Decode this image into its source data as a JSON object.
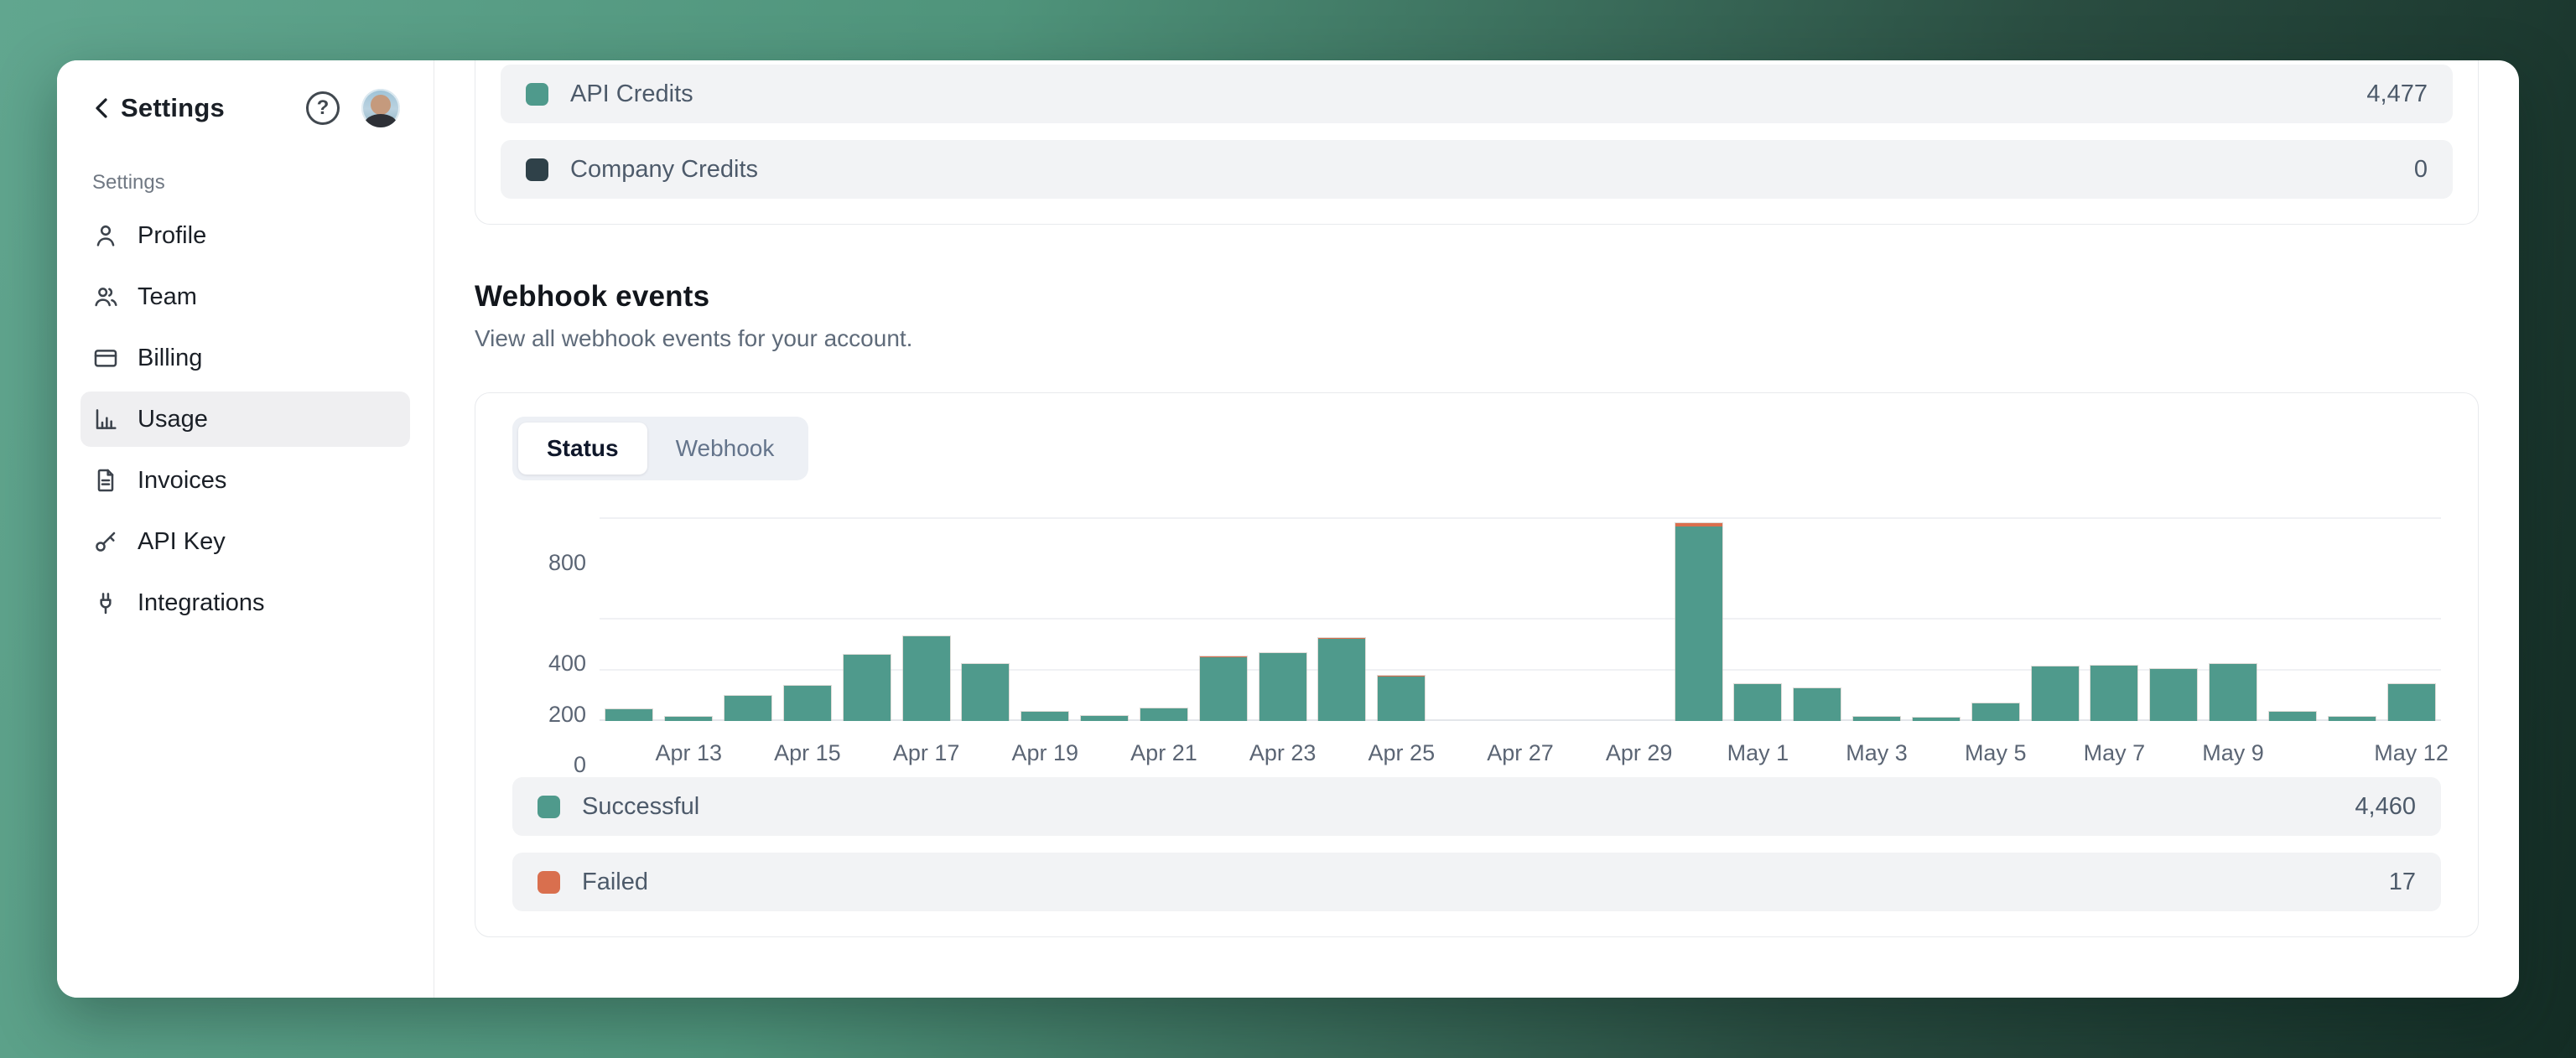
{
  "sidebar": {
    "back_label": "Settings",
    "section_label": "Settings",
    "items": [
      {
        "label": "Profile",
        "active": false
      },
      {
        "label": "Team",
        "active": false
      },
      {
        "label": "Billing",
        "active": false
      },
      {
        "label": "Usage",
        "active": true
      },
      {
        "label": "Invoices",
        "active": false
      },
      {
        "label": "API Key",
        "active": false
      },
      {
        "label": "Integrations",
        "active": false
      }
    ]
  },
  "icons": {
    "help_glyph": "?"
  },
  "credits": {
    "rows": [
      {
        "label": "API Credits",
        "value": "4,477",
        "swatch": "#4f9a8c"
      },
      {
        "label": "Company Credits",
        "value": "0",
        "swatch": "#2f4149"
      }
    ]
  },
  "webhooks": {
    "title": "Webhook events",
    "subtitle": "View all webhook events for your account.",
    "tabs": [
      {
        "label": "Status",
        "active": true
      },
      {
        "label": "Webhook",
        "active": false
      }
    ],
    "legend": [
      {
        "label": "Successful",
        "value": "4,460",
        "swatch": "#4f9a8c"
      },
      {
        "label": "Failed",
        "value": "17",
        "swatch": "#d96f4e"
      }
    ]
  },
  "chart_data": {
    "type": "bar",
    "stacked": true,
    "title": "",
    "xlabel": "",
    "ylabel": "",
    "categories": [
      "Apr 12",
      "Apr 13",
      "Apr 14",
      "Apr 15",
      "Apr 16",
      "Apr 17",
      "Apr 18",
      "Apr 19",
      "Apr 20",
      "Apr 21",
      "Apr 22",
      "Apr 23",
      "Apr 24",
      "Apr 25",
      "Apr 26",
      "Apr 27",
      "Apr 28",
      "Apr 29",
      "Apr 30",
      "May 1",
      "May 2",
      "May 3",
      "May 4",
      "May 5",
      "May 6",
      "May 7",
      "May 8",
      "May 9",
      "May 10",
      "May 11",
      "May 12"
    ],
    "series": [
      {
        "name": "Successful",
        "color": "#4f9a8c",
        "values": [
          46,
          15,
          100,
          140,
          262,
          335,
          225,
          36,
          20,
          50,
          252,
          270,
          325,
          175,
          0,
          0,
          0,
          0,
          770,
          145,
          130,
          18,
          14,
          69,
          215,
          218,
          205,
          225,
          37,
          18,
          145
        ]
      },
      {
        "name": "Failed",
        "color": "#d96f4e",
        "values": [
          0,
          0,
          0,
          0,
          0,
          0,
          0,
          0,
          0,
          0,
          1,
          0,
          1,
          1,
          0,
          0,
          0,
          0,
          14,
          0,
          0,
          0,
          0,
          0,
          0,
          0,
          0,
          0,
          0,
          0,
          0
        ]
      }
    ],
    "y_ticks": [
      0,
      200,
      400,
      800
    ],
    "x_tick_labels": [
      "Apr 13",
      "Apr 15",
      "Apr 17",
      "Apr 19",
      "Apr 21",
      "Apr 23",
      "Apr 25",
      "Apr 27",
      "Apr 29",
      "May 1",
      "May 3",
      "May 5",
      "May 7",
      "May 9",
      "May 12"
    ],
    "ylim": [
      0,
      846
    ],
    "grid": true,
    "legend_position": "below"
  }
}
